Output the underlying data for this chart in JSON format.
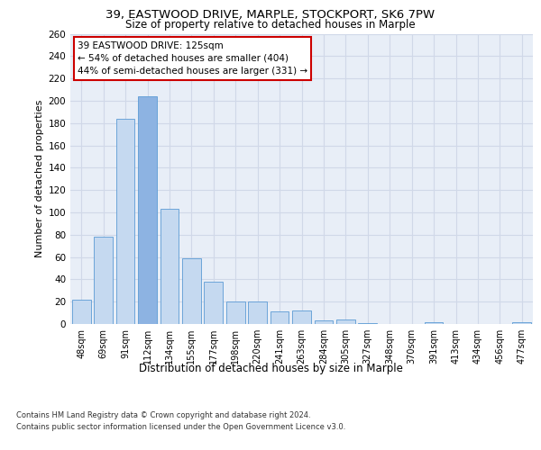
{
  "title_line1": "39, EASTWOOD DRIVE, MARPLE, STOCKPORT, SK6 7PW",
  "title_line2": "Size of property relative to detached houses in Marple",
  "xlabel": "Distribution of detached houses by size in Marple",
  "ylabel": "Number of detached properties",
  "categories": [
    "48sqm",
    "69sqm",
    "91sqm",
    "112sqm",
    "134sqm",
    "155sqm",
    "177sqm",
    "198sqm",
    "220sqm",
    "241sqm",
    "263sqm",
    "284sqm",
    "305sqm",
    "327sqm",
    "348sqm",
    "370sqm",
    "391sqm",
    "413sqm",
    "434sqm",
    "456sqm",
    "477sqm"
  ],
  "values": [
    22,
    78,
    184,
    204,
    103,
    59,
    38,
    20,
    20,
    11,
    12,
    3,
    4,
    1,
    0,
    0,
    2,
    0,
    0,
    0,
    2
  ],
  "highlight_index": 3,
  "bar_color_normal": "#c5d9f0",
  "bar_color_highlight": "#8db3e2",
  "bar_edge_color": "#5b9bd5",
  "grid_color": "#d0d8e8",
  "background_color": "#e8eef7",
  "annotation_text": "39 EASTWOOD DRIVE: 125sqm\n← 54% of detached houses are smaller (404)\n44% of semi-detached houses are larger (331) →",
  "annotation_box_color": "#ffffff",
  "annotation_border_color": "#cc0000",
  "ylim": [
    0,
    260
  ],
  "yticks": [
    0,
    20,
    40,
    60,
    80,
    100,
    120,
    140,
    160,
    180,
    200,
    220,
    240,
    260
  ],
  "footer_line1": "Contains HM Land Registry data © Crown copyright and database right 2024.",
  "footer_line2": "Contains public sector information licensed under the Open Government Licence v3.0."
}
